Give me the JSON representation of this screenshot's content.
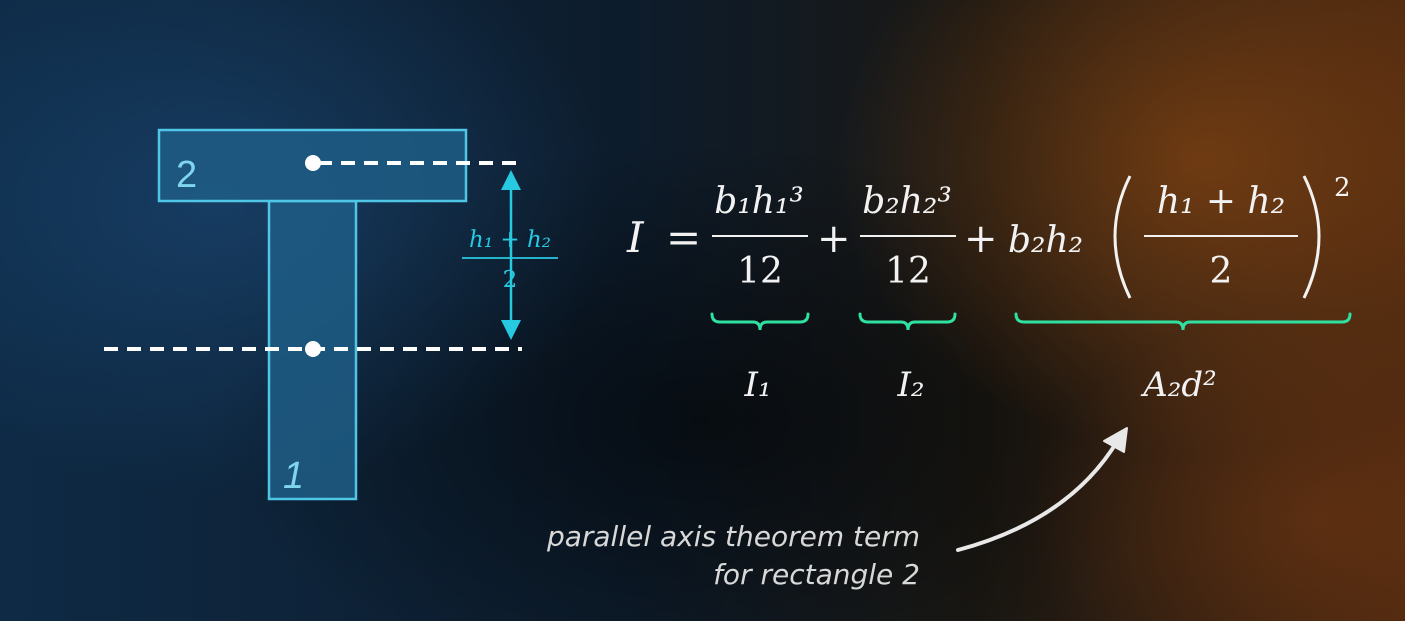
{
  "diagram": {
    "rect_labels": {
      "top": "2",
      "stem": "1"
    },
    "distance_label": {
      "numerator": "h₁ + h₂",
      "denominator": "2"
    }
  },
  "equation": {
    "lhs": "I",
    "equals": "=",
    "term1": {
      "numerator": "b₁h₁³",
      "denominator": "12"
    },
    "term2": {
      "numerator": "b₂h₂³",
      "denominator": "12"
    },
    "term3": {
      "coefficient": "b₂h₂",
      "numerator": "h₁ + h₂",
      "denominator": "2",
      "exponent": "2"
    },
    "plus": "+"
  },
  "braces": [
    {
      "label": "I₁"
    },
    {
      "label": "I₂"
    },
    {
      "label": "A₂d²"
    }
  ],
  "caption": {
    "line1": "parallel axis theorem term",
    "line2": "for rectangle 2"
  },
  "colors": {
    "accent_cyan": "#27c9e0",
    "accent_green": "#2fe0a0",
    "shape_fill": "#1f5d86",
    "shape_stroke": "#4fc6e6"
  }
}
